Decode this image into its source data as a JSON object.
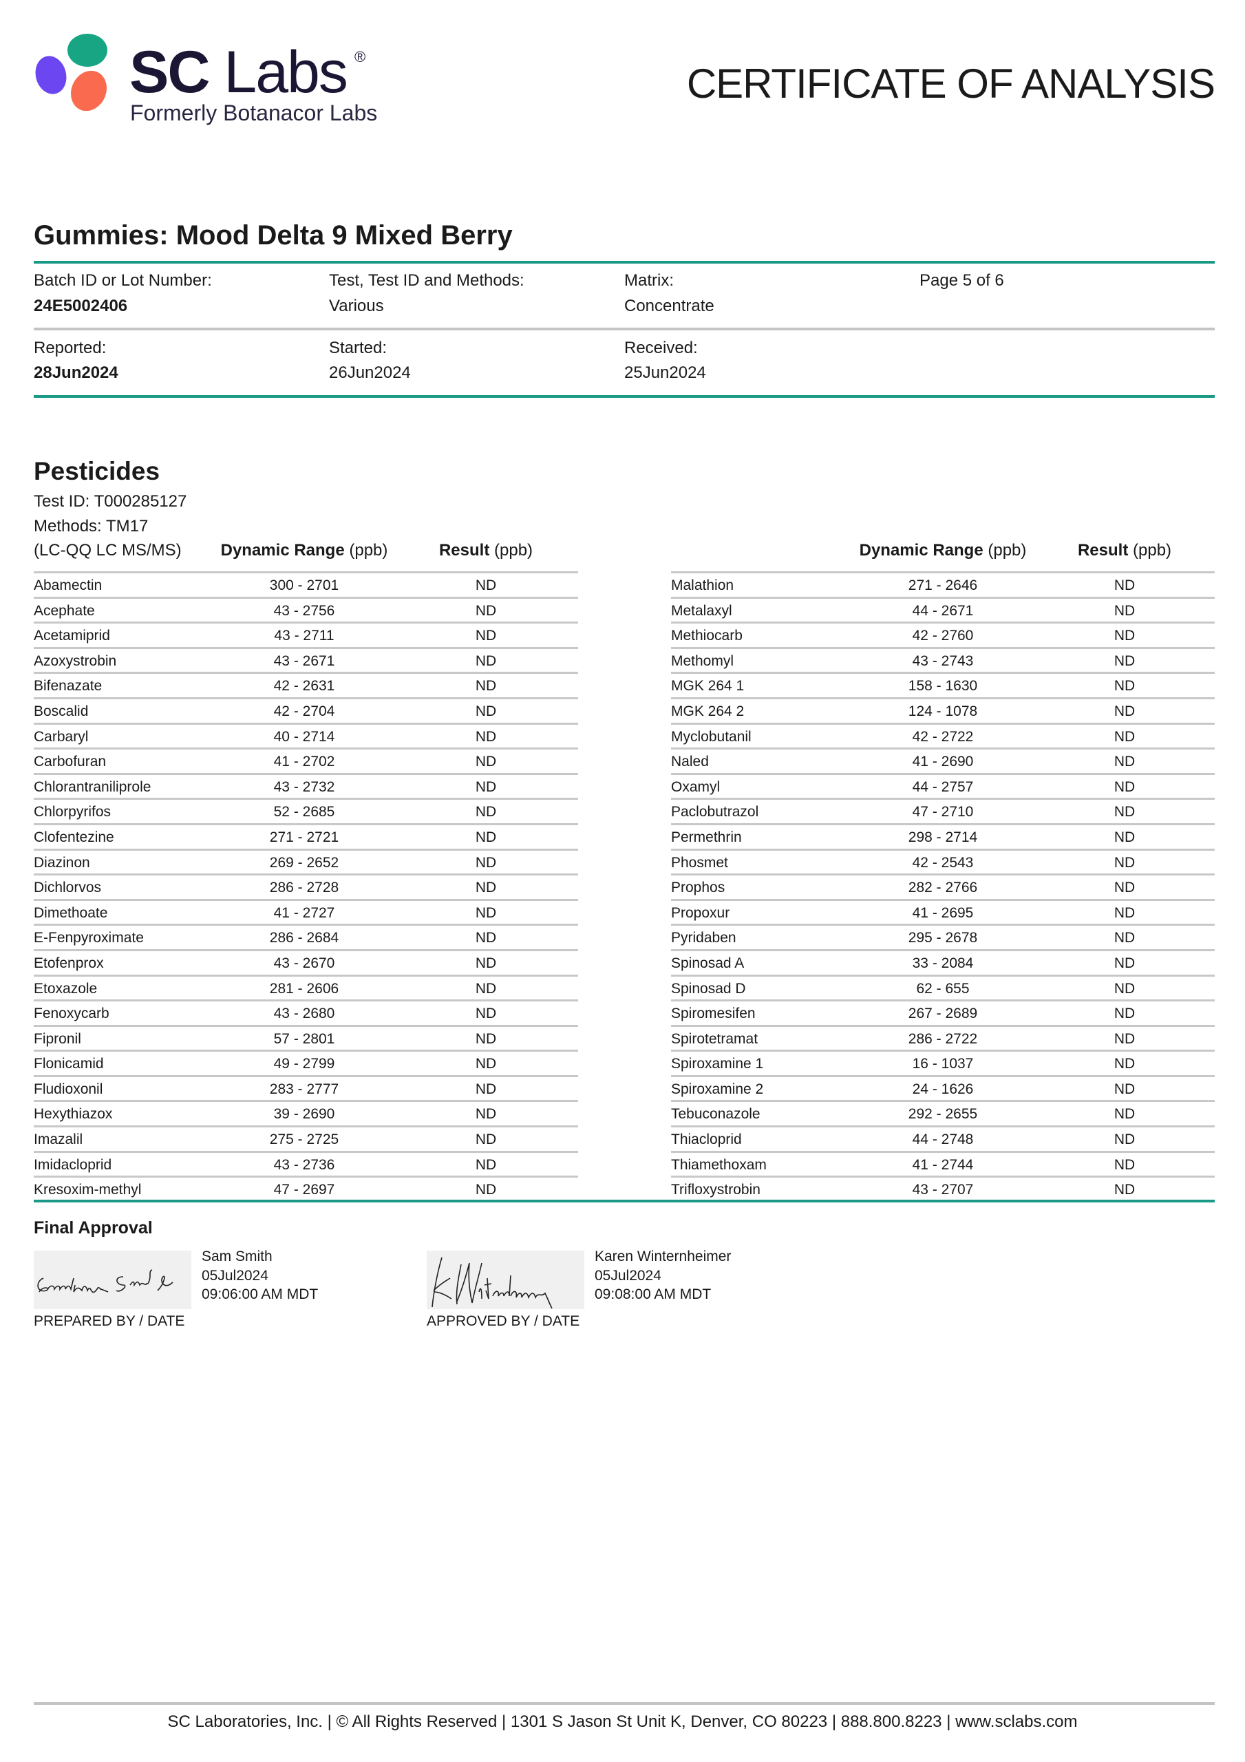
{
  "header": {
    "logo": {
      "brand": "SC Labs",
      "brand_sc": "SC",
      "brand_labs": "Labs",
      "registered": "®",
      "subtitle": "Formerly Botanacor Labs",
      "colors": {
        "green": "#17a584",
        "purple": "#6c46f0",
        "coral": "#f96a4f",
        "navy": "#1c1635"
      }
    },
    "title": "CERTIFICATE OF ANALYSIS"
  },
  "product": {
    "name": "Gummies: Mood Delta 9 Mixed Berry"
  },
  "info": {
    "batch_label": "Batch ID or Lot Number:",
    "batch_value": "24E5002406",
    "test_label": "Test, Test ID and Methods:",
    "test_value": "Various",
    "matrix_label": "Matrix:",
    "matrix_value": "Concentrate",
    "page": "Page 5 of 6",
    "reported_label": "Reported:",
    "reported_value": "28Jun2024",
    "started_label": "Started:",
    "started_value": "26Jun2024",
    "received_label": "Received:",
    "received_value": "25Jun2024"
  },
  "pesticides": {
    "heading": "Pesticides",
    "test_id": "Test ID: T000285127",
    "methods": "Methods: TM17",
    "instrument": "(LC-QQ LC MS/MS)",
    "col_range": "Dynamic Range",
    "col_result": "Result",
    "unit": "(ppb)",
    "left": [
      [
        "Abamectin",
        "300 - 2701",
        "ND"
      ],
      [
        "Acephate",
        "43 - 2756",
        "ND"
      ],
      [
        "Acetamiprid",
        "43 - 2711",
        "ND"
      ],
      [
        "Azoxystrobin",
        "43 - 2671",
        "ND"
      ],
      [
        "Bifenazate",
        "42 - 2631",
        "ND"
      ],
      [
        "Boscalid",
        "42 - 2704",
        "ND"
      ],
      [
        "Carbaryl",
        "40 - 2714",
        "ND"
      ],
      [
        "Carbofuran",
        "41 - 2702",
        "ND"
      ],
      [
        "Chlorantraniliprole",
        "43 - 2732",
        "ND"
      ],
      [
        "Chlorpyrifos",
        "52 - 2685",
        "ND"
      ],
      [
        "Clofentezine",
        "271 - 2721",
        "ND"
      ],
      [
        "Diazinon",
        "269 - 2652",
        "ND"
      ],
      [
        "Dichlorvos",
        "286 - 2728",
        "ND"
      ],
      [
        "Dimethoate",
        "41 - 2727",
        "ND"
      ],
      [
        "E-Fenpyroximate",
        "286 - 2684",
        "ND"
      ],
      [
        "Etofenprox",
        "43 - 2670",
        "ND"
      ],
      [
        "Etoxazole",
        "281 - 2606",
        "ND"
      ],
      [
        "Fenoxycarb",
        "43 - 2680",
        "ND"
      ],
      [
        "Fipronil",
        "57 - 2801",
        "ND"
      ],
      [
        "Flonicamid",
        "49 - 2799",
        "ND"
      ],
      [
        "Fludioxonil",
        "283 - 2777",
        "ND"
      ],
      [
        "Hexythiazox",
        "39 - 2690",
        "ND"
      ],
      [
        "Imazalil",
        "275 - 2725",
        "ND"
      ],
      [
        "Imidacloprid",
        "43 - 2736",
        "ND"
      ],
      [
        "Kresoxim-methyl",
        "47 - 2697",
        "ND"
      ]
    ],
    "right": [
      [
        "Malathion",
        "271 - 2646",
        "ND"
      ],
      [
        "Metalaxyl",
        "44 - 2671",
        "ND"
      ],
      [
        "Methiocarb",
        "42 - 2760",
        "ND"
      ],
      [
        "Methomyl",
        "43 - 2743",
        "ND"
      ],
      [
        "MGK 264 1",
        "158 - 1630",
        "ND"
      ],
      [
        "MGK 264 2",
        "124 - 1078",
        "ND"
      ],
      [
        "Myclobutanil",
        "42 - 2722",
        "ND"
      ],
      [
        "Naled",
        "41 - 2690",
        "ND"
      ],
      [
        "Oxamyl",
        "44 - 2757",
        "ND"
      ],
      [
        "Paclobutrazol",
        "47 - 2710",
        "ND"
      ],
      [
        "Permethrin",
        "298 - 2714",
        "ND"
      ],
      [
        "Phosmet",
        "42 - 2543",
        "ND"
      ],
      [
        "Prophos",
        "282 - 2766",
        "ND"
      ],
      [
        "Propoxur",
        "41 - 2695",
        "ND"
      ],
      [
        "Pyridaben",
        "295 - 2678",
        "ND"
      ],
      [
        "Spinosad A",
        "33 - 2084",
        "ND"
      ],
      [
        "Spinosad D",
        "62 - 655",
        "ND"
      ],
      [
        "Spiromesifen",
        "267 - 2689",
        "ND"
      ],
      [
        "Spirotetramat",
        "286 - 2722",
        "ND"
      ],
      [
        "Spiroxamine 1",
        "16 - 1037",
        "ND"
      ],
      [
        "Spiroxamine 2",
        "24 - 1626",
        "ND"
      ],
      [
        "Tebuconazole",
        "292 - 2655",
        "ND"
      ],
      [
        "Thiacloprid",
        "44 - 2748",
        "ND"
      ],
      [
        "Thiamethoxam",
        "41 - 2744",
        "ND"
      ],
      [
        "Trifloxystrobin",
        "43 - 2707",
        "ND"
      ]
    ]
  },
  "approval": {
    "heading": "Final Approval",
    "prepared": {
      "name": "Sam Smith",
      "date": "05Jul2024",
      "time": "09:06:00 AM MDT",
      "label": "PREPARED BY / DATE",
      "signature": "Samantha Smith"
    },
    "approved": {
      "name": "Karen Winternheimer",
      "date": "05Jul2024",
      "time": "09:08:00 AM MDT",
      "label": "APPROVED BY / DATE",
      "signature": "K Winternheimer"
    }
  },
  "footer": {
    "text": "SC Laboratories, Inc. | © All Rights Reserved | 1301 S Jason St Unit K, Denver, CO 80223 | 888.800.8223 | www.sclabs.com"
  },
  "colors": {
    "accent_teal": "#1a9a86",
    "divider_gray": "#c4c4c4"
  }
}
